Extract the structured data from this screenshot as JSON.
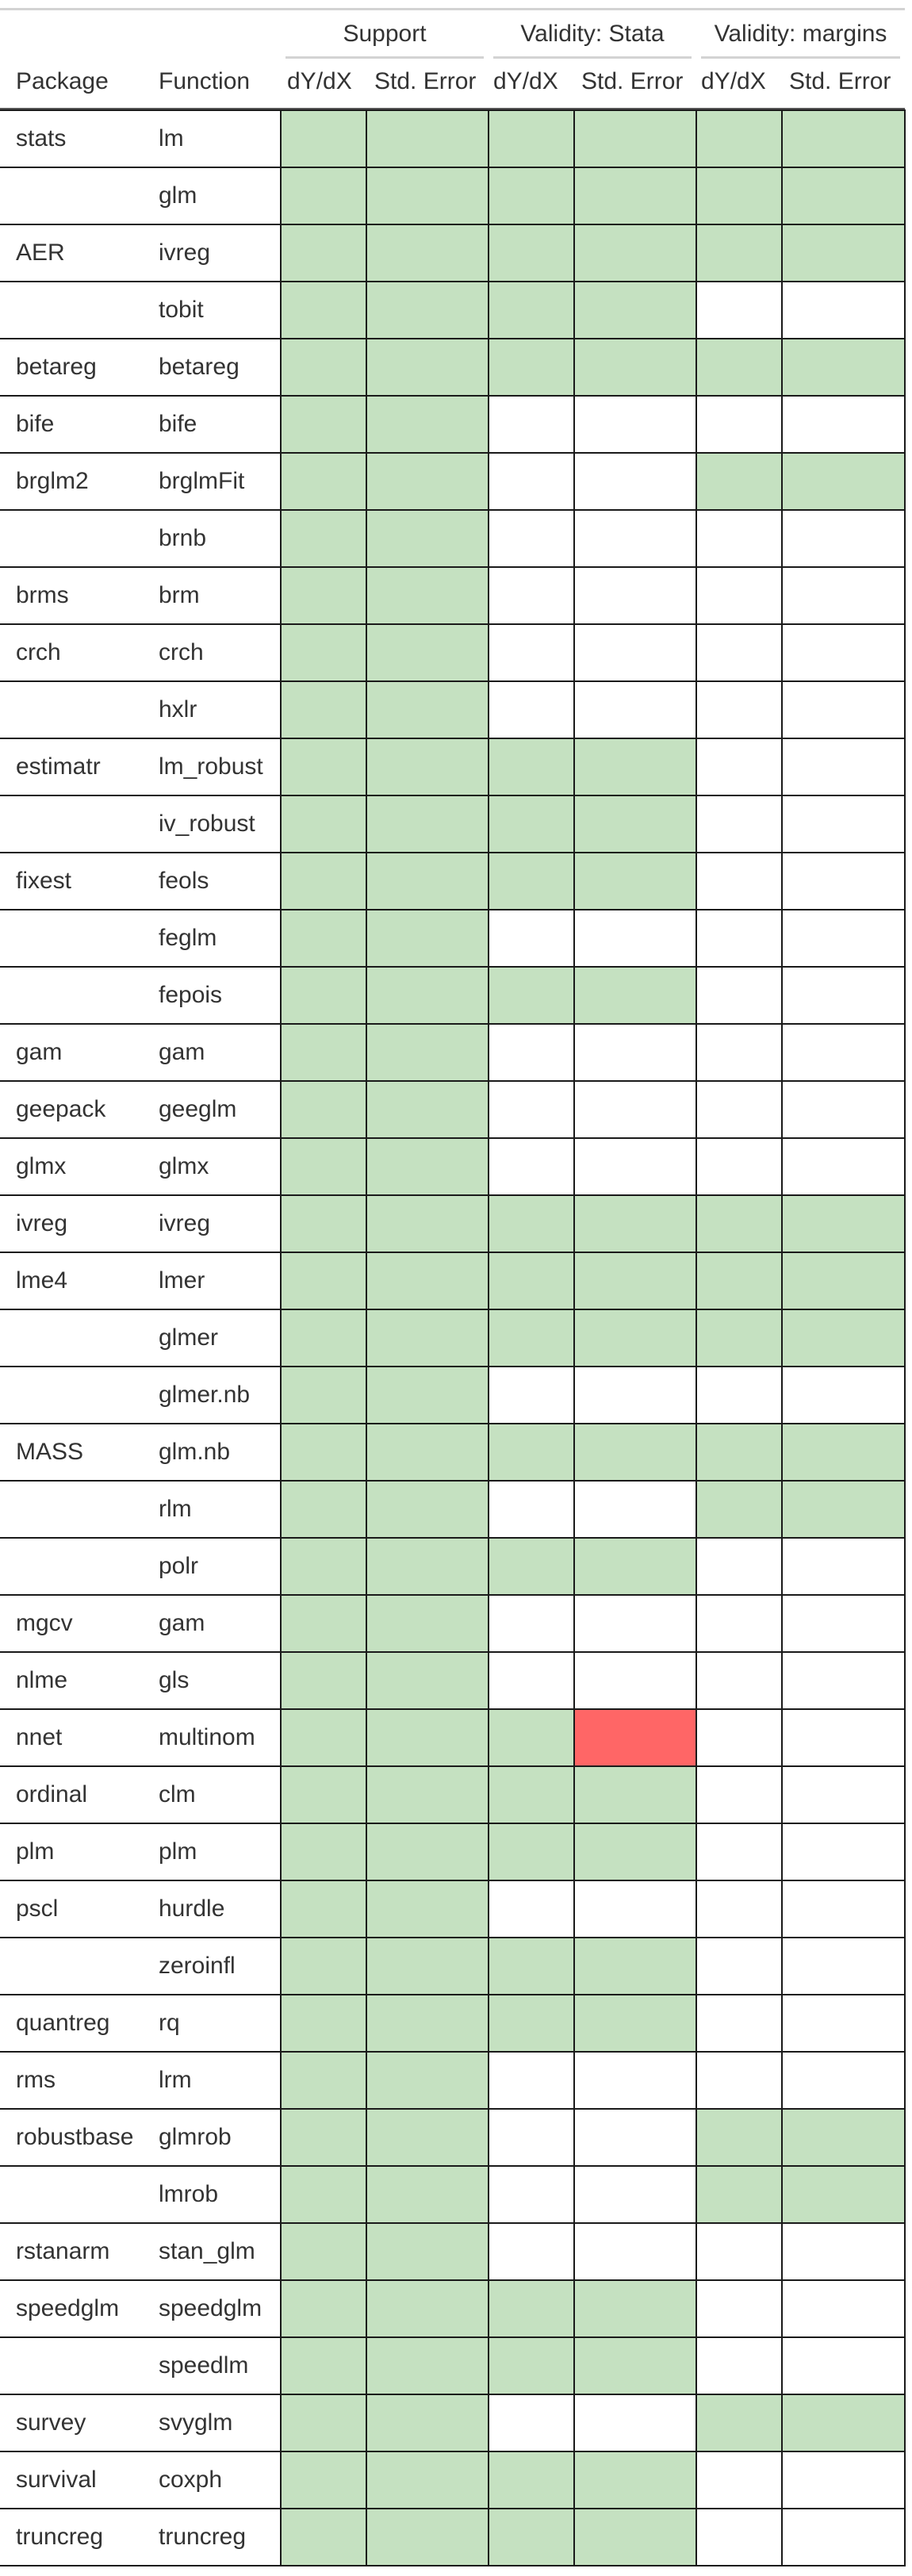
{
  "header": {
    "spanners": [
      "Support",
      "Validity: Stata",
      "Validity: margins"
    ],
    "package_label": "Package",
    "function_label": "Function",
    "sub_columns": [
      "dY/dX",
      "Std. Error",
      "dY/dX",
      "Std. Error",
      "dY/dX",
      "Std. Error"
    ]
  },
  "colors": {
    "pass": "#c5e1c1",
    "fail": "#ff6666",
    "not_tested": "#ffffff"
  },
  "rows": [
    {
      "package": "stats",
      "function": "lm",
      "status": [
        "pass",
        "pass",
        "pass",
        "pass",
        "pass",
        "pass"
      ]
    },
    {
      "package": "",
      "function": "glm",
      "status": [
        "pass",
        "pass",
        "pass",
        "pass",
        "pass",
        "pass"
      ]
    },
    {
      "package": "AER",
      "function": "ivreg",
      "status": [
        "pass",
        "pass",
        "pass",
        "pass",
        "pass",
        "pass"
      ]
    },
    {
      "package": "",
      "function": "tobit",
      "status": [
        "pass",
        "pass",
        "pass",
        "pass",
        "none",
        "none"
      ]
    },
    {
      "package": "betareg",
      "function": "betareg",
      "status": [
        "pass",
        "pass",
        "pass",
        "pass",
        "pass",
        "pass"
      ]
    },
    {
      "package": "bife",
      "function": "bife",
      "status": [
        "pass",
        "pass",
        "none",
        "none",
        "none",
        "none"
      ]
    },
    {
      "package": "brglm2",
      "function": "brglmFit",
      "status": [
        "pass",
        "pass",
        "none",
        "none",
        "pass",
        "pass"
      ]
    },
    {
      "package": "",
      "function": "brnb",
      "status": [
        "pass",
        "pass",
        "none",
        "none",
        "none",
        "none"
      ]
    },
    {
      "package": "brms",
      "function": "brm",
      "status": [
        "pass",
        "pass",
        "none",
        "none",
        "none",
        "none"
      ]
    },
    {
      "package": "crch",
      "function": "crch",
      "status": [
        "pass",
        "pass",
        "none",
        "none",
        "none",
        "none"
      ]
    },
    {
      "package": "",
      "function": "hxlr",
      "status": [
        "pass",
        "pass",
        "none",
        "none",
        "none",
        "none"
      ]
    },
    {
      "package": "estimatr",
      "function": "lm_robust",
      "status": [
        "pass",
        "pass",
        "pass",
        "pass",
        "none",
        "none"
      ]
    },
    {
      "package": "",
      "function": "iv_robust",
      "status": [
        "pass",
        "pass",
        "pass",
        "pass",
        "none",
        "none"
      ]
    },
    {
      "package": "fixest",
      "function": "feols",
      "status": [
        "pass",
        "pass",
        "pass",
        "pass",
        "none",
        "none"
      ]
    },
    {
      "package": "",
      "function": "feglm",
      "status": [
        "pass",
        "pass",
        "none",
        "none",
        "none",
        "none"
      ]
    },
    {
      "package": "",
      "function": "fepois",
      "status": [
        "pass",
        "pass",
        "pass",
        "pass",
        "none",
        "none"
      ]
    },
    {
      "package": "gam",
      "function": "gam",
      "status": [
        "pass",
        "pass",
        "none",
        "none",
        "none",
        "none"
      ]
    },
    {
      "package": "geepack",
      "function": "geeglm",
      "status": [
        "pass",
        "pass",
        "none",
        "none",
        "none",
        "none"
      ]
    },
    {
      "package": "glmx",
      "function": "glmx",
      "status": [
        "pass",
        "pass",
        "none",
        "none",
        "none",
        "none"
      ]
    },
    {
      "package": "ivreg",
      "function": "ivreg",
      "status": [
        "pass",
        "pass",
        "pass",
        "pass",
        "pass",
        "pass"
      ]
    },
    {
      "package": "lme4",
      "function": "lmer",
      "status": [
        "pass",
        "pass",
        "pass",
        "pass",
        "pass",
        "pass"
      ]
    },
    {
      "package": "",
      "function": "glmer",
      "status": [
        "pass",
        "pass",
        "pass",
        "pass",
        "pass",
        "pass"
      ]
    },
    {
      "package": "",
      "function": "glmer.nb",
      "status": [
        "pass",
        "pass",
        "none",
        "none",
        "none",
        "none"
      ]
    },
    {
      "package": "MASS",
      "function": "glm.nb",
      "status": [
        "pass",
        "pass",
        "pass",
        "pass",
        "pass",
        "pass"
      ]
    },
    {
      "package": "",
      "function": "rlm",
      "status": [
        "pass",
        "pass",
        "none",
        "none",
        "pass",
        "pass"
      ]
    },
    {
      "package": "",
      "function": "polr",
      "status": [
        "pass",
        "pass",
        "pass",
        "pass",
        "none",
        "none"
      ]
    },
    {
      "package": "mgcv",
      "function": "gam",
      "status": [
        "pass",
        "pass",
        "none",
        "none",
        "none",
        "none"
      ]
    },
    {
      "package": "nlme",
      "function": "gls",
      "status": [
        "pass",
        "pass",
        "none",
        "none",
        "none",
        "none"
      ]
    },
    {
      "package": "nnet",
      "function": "multinom",
      "status": [
        "pass",
        "pass",
        "pass",
        "fail",
        "none",
        "none"
      ]
    },
    {
      "package": "ordinal",
      "function": "clm",
      "status": [
        "pass",
        "pass",
        "pass",
        "pass",
        "none",
        "none"
      ]
    },
    {
      "package": "plm",
      "function": "plm",
      "status": [
        "pass",
        "pass",
        "pass",
        "pass",
        "none",
        "none"
      ]
    },
    {
      "package": "pscl",
      "function": "hurdle",
      "status": [
        "pass",
        "pass",
        "none",
        "none",
        "none",
        "none"
      ]
    },
    {
      "package": "",
      "function": "zeroinfl",
      "status": [
        "pass",
        "pass",
        "pass",
        "pass",
        "none",
        "none"
      ]
    },
    {
      "package": "quantreg",
      "function": "rq",
      "status": [
        "pass",
        "pass",
        "pass",
        "pass",
        "none",
        "none"
      ]
    },
    {
      "package": "rms",
      "function": "lrm",
      "status": [
        "pass",
        "pass",
        "none",
        "none",
        "none",
        "none"
      ]
    },
    {
      "package": "robustbase",
      "function": "glmrob",
      "status": [
        "pass",
        "pass",
        "none",
        "none",
        "pass",
        "pass"
      ]
    },
    {
      "package": "",
      "function": "lmrob",
      "status": [
        "pass",
        "pass",
        "none",
        "none",
        "pass",
        "pass"
      ]
    },
    {
      "package": "rstanarm",
      "function": "stan_glm",
      "status": [
        "pass",
        "pass",
        "none",
        "none",
        "none",
        "none"
      ]
    },
    {
      "package": "speedglm",
      "function": "speedglm",
      "status": [
        "pass",
        "pass",
        "pass",
        "pass",
        "none",
        "none"
      ]
    },
    {
      "package": "",
      "function": "speedlm",
      "status": [
        "pass",
        "pass",
        "pass",
        "pass",
        "none",
        "none"
      ]
    },
    {
      "package": "survey",
      "function": "svyglm",
      "status": [
        "pass",
        "pass",
        "none",
        "none",
        "pass",
        "pass"
      ]
    },
    {
      "package": "survival",
      "function": "coxph",
      "status": [
        "pass",
        "pass",
        "pass",
        "pass",
        "none",
        "none"
      ]
    },
    {
      "package": "truncreg",
      "function": "truncreg",
      "status": [
        "pass",
        "pass",
        "pass",
        "pass",
        "none",
        "none"
      ]
    }
  ]
}
